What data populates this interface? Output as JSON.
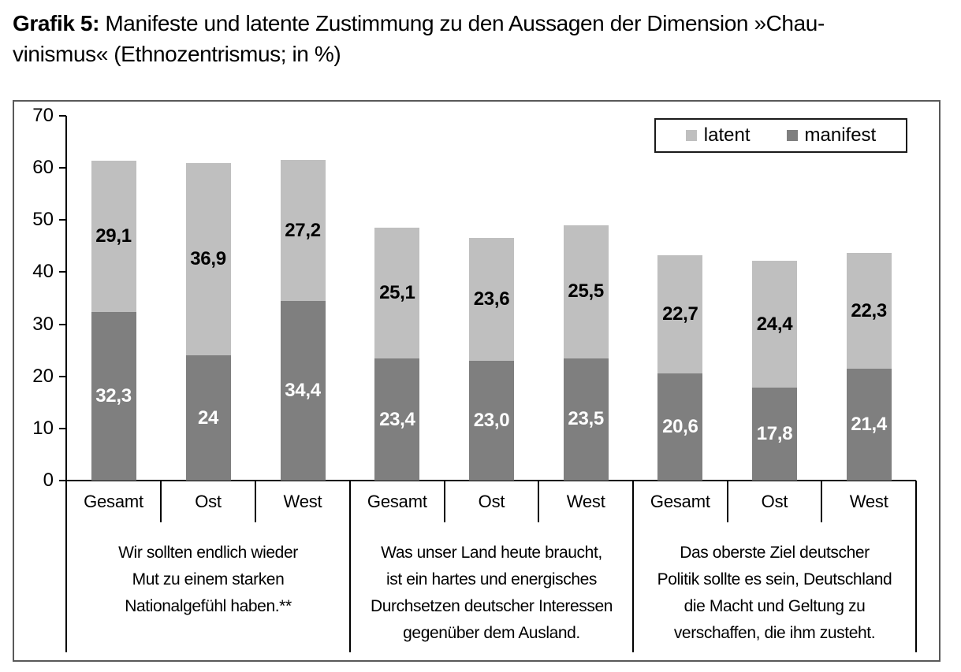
{
  "title": {
    "prefix": "Grafik 5:",
    "line1_rest": " Manifeste und latente Zustimmung zu den Aussagen der Dimension »Chau-",
    "line2": "vinismus« (Ethnozentrismus; in %)"
  },
  "legend": {
    "items": [
      {
        "label": "latent",
        "color": "#bfbfbf"
      },
      {
        "label": "manifest",
        "color": "#7f7f7f"
      }
    ],
    "position": "top-right-inside"
  },
  "chart_data": {
    "type": "bar",
    "stacked": true,
    "title": "Grafik 5: Manifeste und latente Zustimmung zu den Aussagen der Dimension »Chauvinismus« (Ethnozentrismus; in %)",
    "xlabel": "",
    "ylabel": "",
    "unit": "%",
    "ylim": [
      0,
      70
    ],
    "yticks": [
      0,
      10,
      20,
      30,
      40,
      50,
      60,
      70
    ],
    "grid": false,
    "series_names": [
      "manifest",
      "latent"
    ],
    "colors": {
      "latent": "#bfbfbf",
      "manifest": "#7f7f7f"
    },
    "groups": [
      {
        "question_lines": [
          "Wir sollten endlich wieder",
          "Mut zu einem starken",
          "Nationalgefühl haben.**"
        ],
        "bars": [
          {
            "category": "Gesamt",
            "manifest": 32.3,
            "manifest_label": "32,3",
            "latent": 29.1,
            "latent_label": "29,1"
          },
          {
            "category": "Ost",
            "manifest": 24.0,
            "manifest_label": "24",
            "latent": 36.9,
            "latent_label": "36,9"
          },
          {
            "category": "West",
            "manifest": 34.4,
            "manifest_label": "34,4",
            "latent": 27.2,
            "latent_label": "27,2"
          }
        ]
      },
      {
        "question_lines": [
          "Was unser Land heute braucht,",
          "ist ein hartes und energisches",
          "Durchsetzen deutscher Interessen",
          "gegenüber dem Ausland."
        ],
        "bars": [
          {
            "category": "Gesamt",
            "manifest": 23.4,
            "manifest_label": "23,4",
            "latent": 25.1,
            "latent_label": "25,1"
          },
          {
            "category": "Ost",
            "manifest": 23.0,
            "manifest_label": "23,0",
            "latent": 23.6,
            "latent_label": "23,6"
          },
          {
            "category": "West",
            "manifest": 23.5,
            "manifest_label": "23,5",
            "latent": 25.5,
            "latent_label": "25,5"
          }
        ]
      },
      {
        "question_lines": [
          "Das oberste Ziel deutscher",
          "Politik sollte es sein, Deutschland",
          "die Macht und Geltung zu",
          "verschaffen, die ihm zusteht."
        ],
        "bars": [
          {
            "category": "Gesamt",
            "manifest": 20.6,
            "manifest_label": "20,6",
            "latent": 22.7,
            "latent_label": "22,7"
          },
          {
            "category": "Ost",
            "manifest": 17.8,
            "manifest_label": "17,8",
            "latent": 24.4,
            "latent_label": "24,4"
          },
          {
            "category": "West",
            "manifest": 21.4,
            "manifest_label": "21,4",
            "latent": 22.3,
            "latent_label": "22,3"
          }
        ]
      }
    ]
  }
}
